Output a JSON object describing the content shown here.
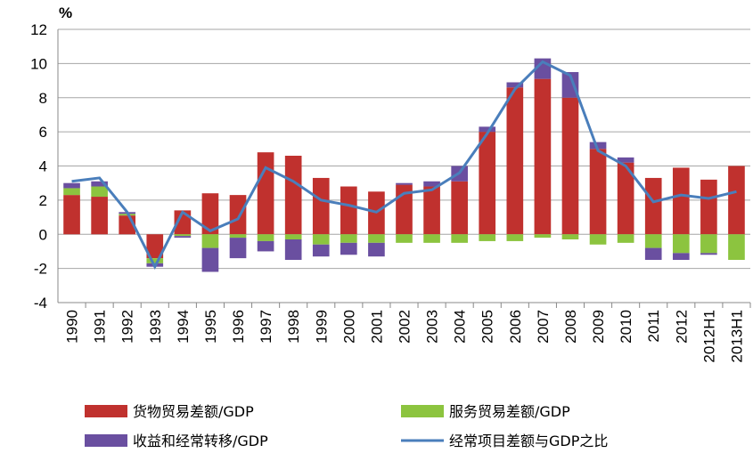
{
  "chart_data": {
    "type": "stacked-bar-line",
    "y_label": "%",
    "categories": [
      "1990",
      "1991",
      "1992",
      "1993",
      "1994",
      "1995",
      "1996",
      "1997",
      "1998",
      "1999",
      "2000",
      "2001",
      "2002",
      "2003",
      "2004",
      "2005",
      "2006",
      "2007",
      "2008",
      "2009",
      "2010",
      "2011",
      "2012",
      "2012H1",
      "2013H1"
    ],
    "series": [
      {
        "name": "货物贸易差额/GDP",
        "kind": "bar",
        "color": "#c0312e",
        "values": [
          2.3,
          2.2,
          1.1,
          -1.4,
          1.4,
          2.4,
          2.3,
          4.8,
          4.6,
          3.3,
          2.8,
          2.5,
          2.9,
          2.8,
          3.1,
          6.0,
          8.6,
          9.1,
          8.0,
          5.0,
          4.2,
          3.3,
          3.9,
          3.2,
          4.0
        ]
      },
      {
        "name": "服务贸易差额/GDP",
        "kind": "bar",
        "color": "#8cc43f",
        "values": [
          0.4,
          0.6,
          0.1,
          -0.3,
          -0.1,
          -0.8,
          -0.2,
          -0.4,
          -0.3,
          -0.6,
          -0.5,
          -0.5,
          -0.5,
          -0.5,
          -0.5,
          -0.4,
          -0.4,
          -0.2,
          -0.3,
          -0.6,
          -0.5,
          -0.8,
          -1.1,
          -1.1,
          -1.5
        ]
      },
      {
        "name": "收益和经常转移/GDP",
        "kind": "bar",
        "color": "#6a4fa0",
        "values": [
          0.3,
          0.3,
          0.1,
          -0.2,
          -0.1,
          -1.4,
          -1.2,
          -0.6,
          -1.2,
          -0.7,
          -0.7,
          -0.8,
          0.1,
          0.3,
          0.9,
          0.3,
          0.3,
          1.2,
          1.5,
          0.4,
          0.3,
          -0.7,
          -0.4,
          -0.1,
          0.0
        ]
      },
      {
        "name": "经常项目差额与GDP之比",
        "kind": "line",
        "color": "#4a7ebb",
        "values": [
          3.1,
          3.3,
          1.3,
          -1.9,
          1.3,
          0.2,
          0.9,
          3.9,
          3.1,
          2.0,
          1.7,
          1.3,
          2.4,
          2.6,
          3.6,
          5.9,
          8.5,
          10.1,
          9.3,
          4.9,
          4.0,
          1.9,
          2.3,
          2.1,
          2.5
        ]
      }
    ],
    "ylim": [
      -4,
      12
    ],
    "yticks": [
      -4,
      -2,
      0,
      2,
      4,
      6,
      8,
      10,
      12
    ],
    "grid": true
  }
}
